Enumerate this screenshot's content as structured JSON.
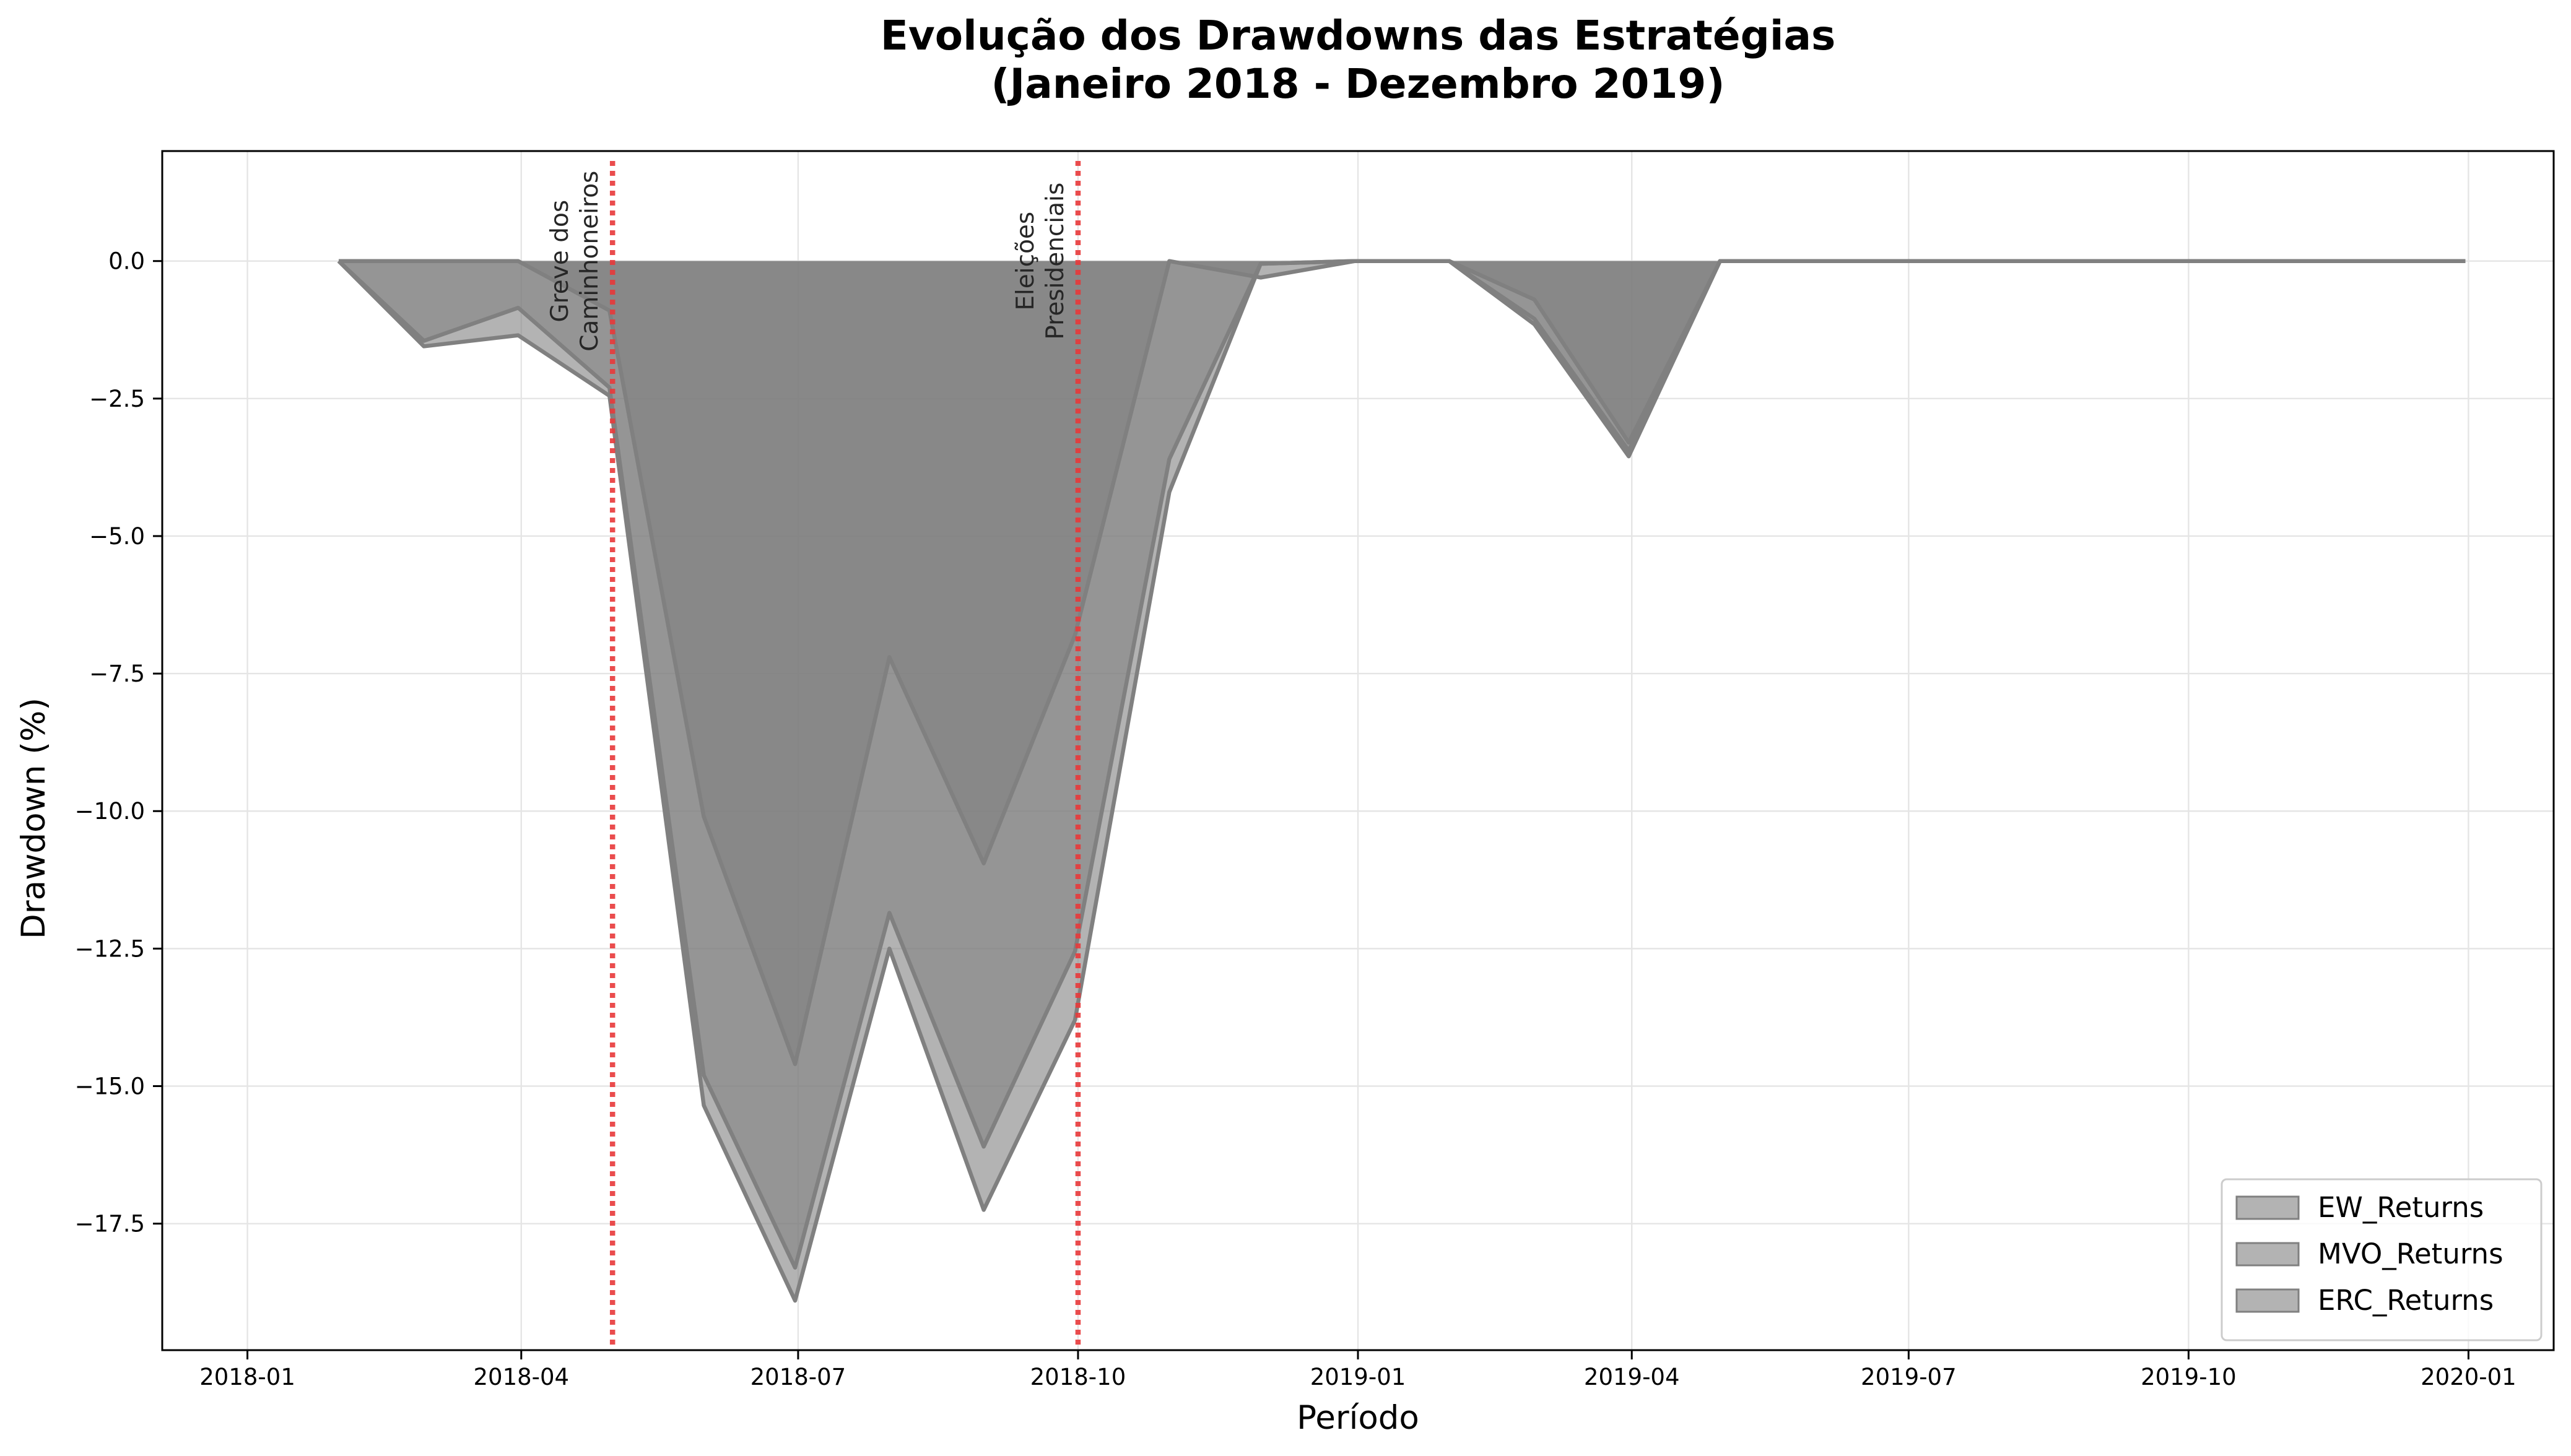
{
  "chart_data": {
    "type": "area",
    "title": "Evolução dos Drawdowns das Estratégias",
    "subtitle": "(Janeiro 2018 - Dezembro 2019)",
    "xlabel": "Período",
    "ylabel": "Drawdown (%)",
    "x_tick_labels": [
      "2018-01",
      "2018-04",
      "2018-07",
      "2018-10",
      "2019-01",
      "2019-04",
      "2019-07",
      "2019-10",
      "2020-01"
    ],
    "x_tick_dates": [
      "2018-01-01",
      "2018-04-01",
      "2018-07-01",
      "2018-10-01",
      "2019-01-01",
      "2019-04-01",
      "2019-07-01",
      "2019-10-01",
      "2020-01-01"
    ],
    "y_ticks": [
      0.0,
      -2.5,
      -5.0,
      -7.5,
      -10.0,
      -12.5,
      -15.0,
      -17.5
    ],
    "y_tick_labels": [
      "0.0",
      "−2.5",
      "−5.0",
      "−7.5",
      "−10.0",
      "−12.5",
      "−15.0",
      "−17.5"
    ],
    "xlim": [
      "2017-12-04",
      "2020-01-29"
    ],
    "ylim": [
      -19.8,
      2.0
    ],
    "grid": true,
    "legend_position": "lower-right",
    "x": [
      "2018-01-31",
      "2018-02-28",
      "2018-03-31",
      "2018-04-30",
      "2018-05-31",
      "2018-06-30",
      "2018-07-31",
      "2018-08-31",
      "2018-09-30",
      "2018-10-31",
      "2018-11-30",
      "2018-12-31",
      "2019-01-31",
      "2019-02-28",
      "2019-03-31",
      "2019-04-30",
      "2019-05-31",
      "2019-06-30",
      "2019-07-31",
      "2019-08-31",
      "2019-09-30",
      "2019-10-31",
      "2019-11-30",
      "2019-12-31"
    ],
    "series": [
      {
        "name": "EW_Returns",
        "values": [
          0.0,
          -1.55,
          -1.35,
          -2.45,
          -15.35,
          -18.9,
          -12.5,
          -17.25,
          -13.8,
          -4.2,
          -0.05,
          0.0,
          0.0,
          -1.15,
          -3.55,
          0.0,
          0.0,
          0.0,
          0.0,
          0.0,
          0.0,
          0.0,
          0.0,
          0.0
        ]
      },
      {
        "name": "MVO_Returns",
        "values": [
          0.0,
          -1.45,
          -0.85,
          -2.3,
          -14.8,
          -18.3,
          -11.85,
          -16.1,
          -12.55,
          -3.6,
          -0.05,
          0.0,
          0.0,
          -1.05,
          -3.45,
          0.0,
          0.0,
          0.0,
          0.0,
          0.0,
          0.0,
          0.0,
          0.0,
          0.0
        ]
      },
      {
        "name": "ERC_Returns",
        "values": [
          0.0,
          0.0,
          0.0,
          -0.9,
          -10.1,
          -14.6,
          -7.2,
          -10.95,
          -6.8,
          0.0,
          -0.3,
          0.0,
          0.0,
          -0.7,
          -3.3,
          0.0,
          0.0,
          0.0,
          0.0,
          0.0,
          0.0,
          0.0,
          0.0,
          0.0
        ]
      }
    ],
    "fill_color": "#808080",
    "fill_opacity": 0.6,
    "line_color": "#808080",
    "events": [
      {
        "date": "2018-05-01",
        "label_lines": [
          "Greve dos",
          "Caminhoneiros"
        ],
        "color": "#e8393a"
      },
      {
        "date": "2018-10-01",
        "label_lines": [
          "Eleições",
          "Presidenciais"
        ],
        "color": "#e8393a"
      }
    ]
  }
}
